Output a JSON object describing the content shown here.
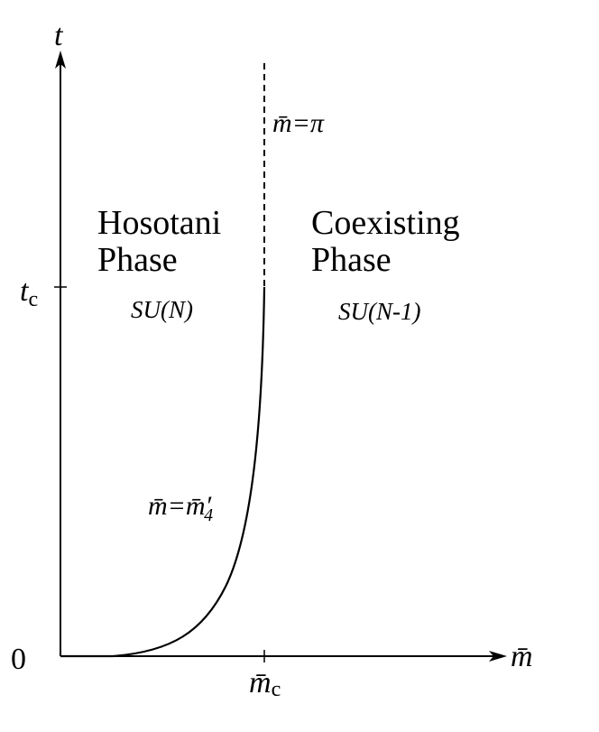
{
  "axes": {
    "y_label": "t",
    "x_label": "m̄",
    "origin_label": "0",
    "y_tick": {
      "main": "t",
      "sub": "c"
    },
    "x_tick": {
      "main": "m̄",
      "sub": "c"
    }
  },
  "boundaries": [
    {
      "main": "m̄=π"
    },
    {
      "main": "m̄=m̄′",
      "sub": "4"
    }
  ],
  "phases": [
    {
      "name": [
        "Hosotani",
        "Phase"
      ],
      "group": "SU(N)"
    },
    {
      "name": [
        "Coexisting",
        "Phase"
      ],
      "group": "SU(N-1)"
    }
  ]
}
